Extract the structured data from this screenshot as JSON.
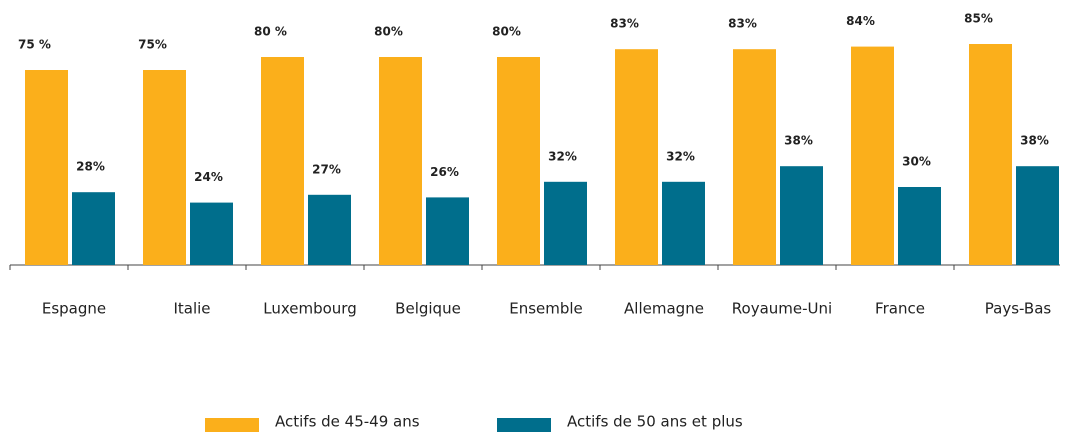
{
  "chart_data": {
    "type": "bar",
    "categories": [
      "Espagne",
      "Italie",
      "Luxembourg",
      "Belgique",
      "Ensemble",
      "Allemagne",
      "Royaume-Uni",
      "France",
      "Pays-Bas"
    ],
    "series": [
      {
        "name": "Actifs de 45-49 ans",
        "color": "#fbaf1b",
        "values": [
          75,
          75,
          80,
          80,
          80,
          83,
          83,
          84,
          85
        ],
        "value_labels": [
          "75 %",
          "75%",
          "80 %",
          "80%",
          "80%",
          "83%",
          "83%",
          "84%",
          "85%"
        ]
      },
      {
        "name": "Actifs de 50 ans et plus",
        "color": "#006e8c",
        "values": [
          28,
          24,
          27,
          26,
          32,
          32,
          38,
          30,
          38
        ],
        "value_labels": [
          "28%",
          "24%",
          "27%",
          "26%",
          "32%",
          "32%",
          "38%",
          "30%",
          "38%"
        ]
      }
    ],
    "ylim": [
      0,
      100
    ]
  }
}
